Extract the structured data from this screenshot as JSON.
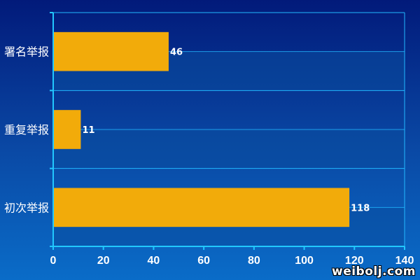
{
  "chart_data": {
    "type": "bar",
    "orientation": "horizontal",
    "categories": [
      "署名举报",
      "重复举报",
      "初次举报"
    ],
    "values": [
      46,
      11,
      118
    ],
    "xlim": [
      0,
      140
    ],
    "xticks": [
      0,
      20,
      40,
      60,
      80,
      100,
      120,
      140
    ],
    "grid": true,
    "data_labels": true,
    "colors": {
      "bar": "#f2ab0a",
      "gridline": "#22b8ff",
      "axis": "#22c8ff",
      "band_fill": "#0a4d9e",
      "text": "#ffffff"
    }
  },
  "watermark": "weibolj.com"
}
